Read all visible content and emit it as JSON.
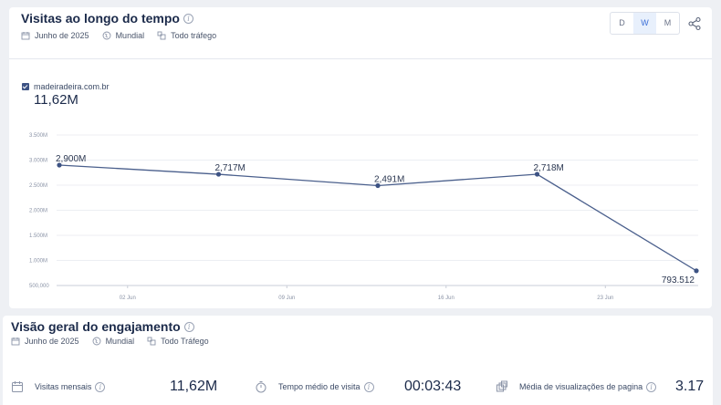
{
  "visits_card": {
    "title": "Visitas ao longo do tempo",
    "filters": {
      "date": "Junho de 2025",
      "region": "Mundial",
      "traffic": "Todo tráfego"
    },
    "granularity": {
      "options": [
        "D",
        "W",
        "M"
      ],
      "selected": "W"
    },
    "legend": {
      "site": "madeiradeira.com.br",
      "total": "11,62M",
      "color": "#3d5384"
    }
  },
  "chart_data": {
    "type": "line",
    "series": [
      {
        "name": "madeiradeira.com.br",
        "x": [
          "2025-05-30",
          "2025-06-06",
          "2025-06-13",
          "2025-06-20",
          "2025-06-27"
        ],
        "values": [
          2900000,
          2717000,
          2491000,
          2718000,
          793512
        ],
        "labels": [
          "2,900M",
          "2,717M",
          "2,491M",
          "2,718M",
          "793.512"
        ]
      }
    ],
    "ylim": [
      500000,
      3500000
    ],
    "yticks": [
      3500000,
      3000000,
      2500000,
      2000000,
      1500000,
      1000000,
      500000
    ],
    "ytick_labels": [
      "3.500M",
      "3.000M",
      "2.500M",
      "2.000M",
      "1.500M",
      "1.000M",
      "500,000"
    ],
    "xticks": [
      "2025-06-02",
      "2025-06-09",
      "2025-06-16",
      "2025-06-23"
    ],
    "xtick_labels": [
      "02 Jun",
      "09 Jun",
      "16 Jun",
      "23 Jun"
    ],
    "grid": true,
    "line_color": "#4a5f8c"
  },
  "engagement_card": {
    "title": "Visão geral do engajamento",
    "filters": {
      "date": "Junho de 2025",
      "region": "Mundial",
      "traffic": "Todo Tráfego"
    },
    "kpis": {
      "monthly_visits": {
        "label": "Visitas mensais",
        "value": "11,62M"
      },
      "avg_visit_time": {
        "label": "Tempo médio de visita",
        "value": "00:03:43"
      },
      "avg_pageviews": {
        "label": "Média de visualizações de pagina",
        "value": "3.17"
      }
    }
  }
}
